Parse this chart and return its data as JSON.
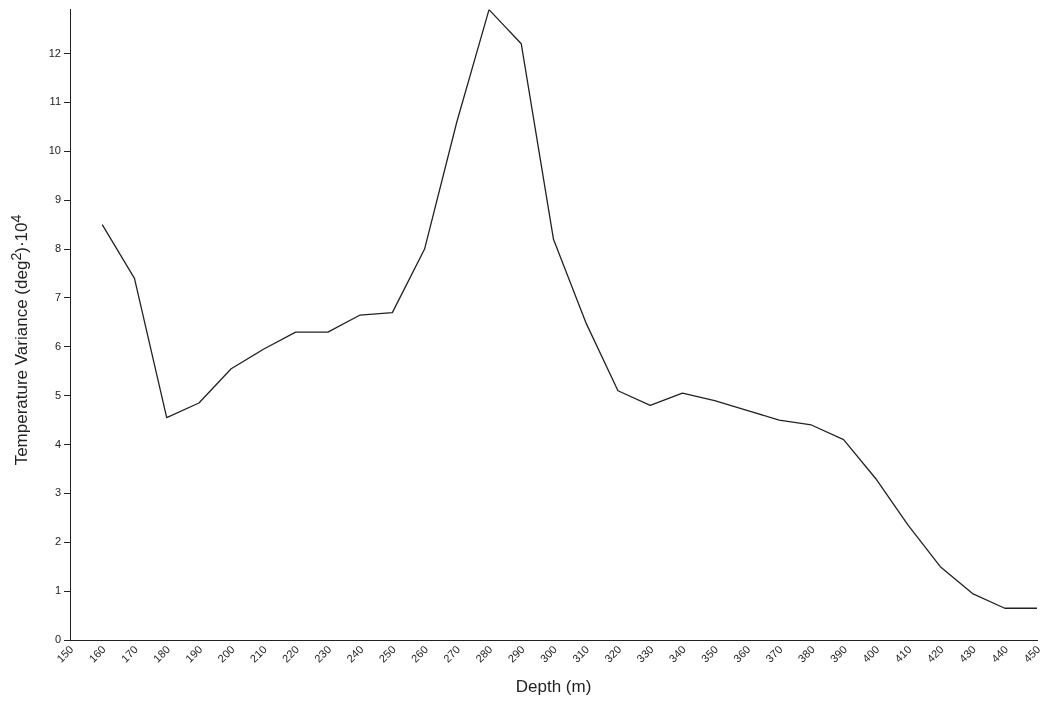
{
  "chart_data": {
    "type": "line",
    "xlabel": "Depth (m)",
    "ylabel": "Temperature Variance (deg$^{2}$)·10$^{4}$",
    "x": [
      160,
      170,
      180,
      190,
      200,
      210,
      220,
      230,
      240,
      250,
      260,
      270,
      280,
      290,
      300,
      310,
      320,
      330,
      340,
      350,
      360,
      370,
      380,
      390,
      400,
      410,
      420,
      430,
      440,
      450
    ],
    "series": [
      {
        "color": "#222222",
        "values": [
          8.5,
          7.4,
          4.55,
          4.85,
          5.55,
          5.95,
          6.3,
          6.3,
          6.65,
          6.7,
          8.0,
          10.6,
          12.9,
          12.2,
          8.2,
          6.5,
          5.1,
          4.8,
          5.05,
          4.9,
          4.7,
          4.5,
          4.4,
          4.1,
          3.3,
          2.35,
          1.5,
          0.95,
          0.65,
          0.65
        ]
      }
    ],
    "xlim": [
      150,
      450
    ],
    "xticks": [
      150,
      160,
      170,
      180,
      190,
      200,
      210,
      220,
      230,
      240,
      250,
      260,
      270,
      280,
      290,
      300,
      310,
      320,
      330,
      340,
      350,
      360,
      370,
      380,
      390,
      400,
      410,
      420,
      430,
      440,
      450
    ],
    "ylim": [
      0,
      12.9
    ],
    "yticks": [
      0,
      1,
      2,
      3,
      4,
      5,
      6,
      7,
      8,
      9,
      10,
      11,
      12
    ],
    "grid": false,
    "legend": false,
    "marker": "none",
    "line_style": "solid"
  }
}
